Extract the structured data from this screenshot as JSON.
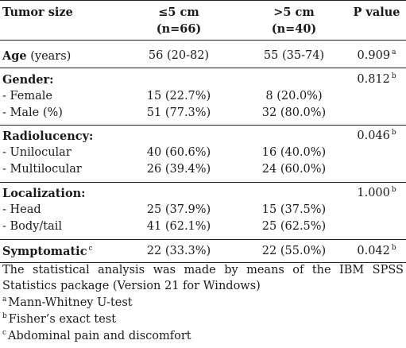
{
  "table": {
    "header": {
      "col0": "Tumor size",
      "col1_line1": "≤5 cm",
      "col1_line2": "(n=66)",
      "col2_line1": ">5 cm",
      "col2_line2": "(n=40)",
      "col3": "P value"
    },
    "rows": {
      "age": {
        "label": "Age",
        "label_extra": "(years)",
        "v1": "56 (20-82)",
        "v2": "55 (35-74)",
        "p": "0.909",
        "p_sup": "a"
      },
      "gender": {
        "label": "Gender:",
        "p": "0.812",
        "p_sup": "b"
      },
      "female": {
        "label": "- Female",
        "v1": "15 (22.7%)",
        "v2": "8 (20.0%)"
      },
      "male": {
        "label": "- Male (%)",
        "v1": "51 (77.3%)",
        "v2": "32 (80.0%)"
      },
      "radiolucency": {
        "label": "Radiolucency:",
        "p": "0.046",
        "p_sup": "b"
      },
      "unilocular": {
        "label": "- Unilocular",
        "v1": "40 (60.6%)",
        "v2": "16 (40.0%)"
      },
      "multilocular": {
        "label": "- Multilocular",
        "v1": "26 (39.4%)",
        "v2": "24 (60.0%)"
      },
      "localization": {
        "label": "Localization:",
        "p": "1.000",
        "p_sup": "b"
      },
      "head": {
        "label": "- Head",
        "v1": "25 (37.9%)",
        "v2": "15 (37.5%)"
      },
      "bodytail": {
        "label": "- Body/tail",
        "v1": "41 (62.1%)",
        "v2": "25 (62.5%)"
      },
      "symptomatic": {
        "label": "Symptomatic",
        "label_sup": "c",
        "v1": "22 (33.3%)",
        "v2": "22 (55.0%)",
        "p": "0.042",
        "p_sup": "b"
      }
    }
  },
  "notes": {
    "analysis_line1": "The statistical analysis was made by means of the IBM SPSS",
    "analysis_line2": "Statistics package (Version 21 for Windows)",
    "a_sup": "a",
    "a_text": "Mann-Whitney U-test",
    "b_sup": "b",
    "b_text": "Fisher’s exact test",
    "c_sup": "c",
    "c_text": "Abdominal pain and discomfort"
  }
}
